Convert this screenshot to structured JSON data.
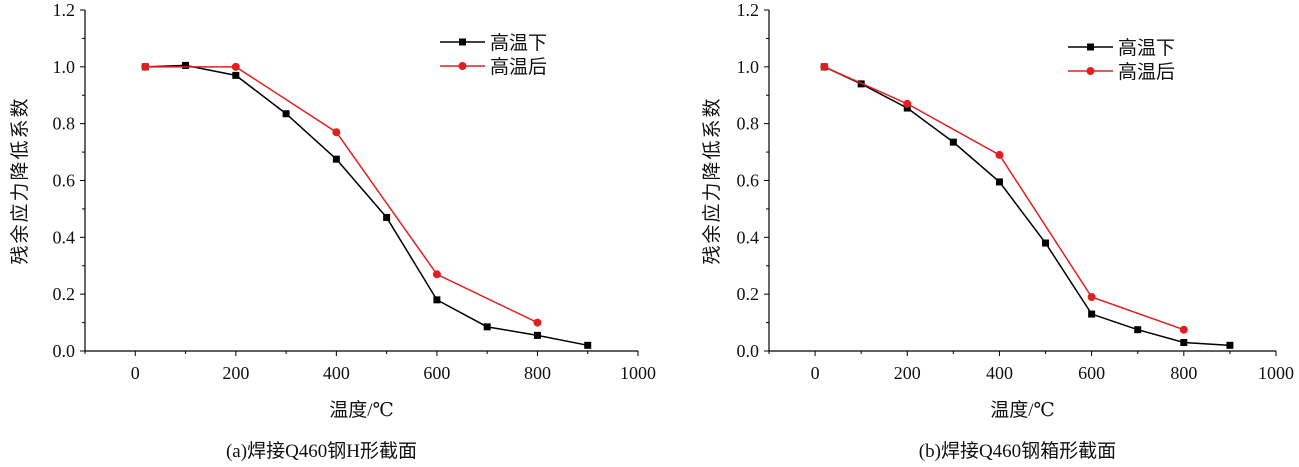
{
  "chart_data": [
    {
      "type": "line",
      "caption": "(a)焊接Q460钢H形截面",
      "xlabel": "温度/℃",
      "ylabel": "残余应力降低系数",
      "xlim": [
        -100,
        1000
      ],
      "ylim": [
        0,
        1.2
      ],
      "xticks": [
        "0",
        "200",
        "400",
        "600",
        "800",
        "1000"
      ],
      "yticks": [
        "0.0",
        "0.2",
        "0.4",
        "0.6",
        "0.8",
        "1.0",
        "1.2"
      ],
      "legend_position": "top-right",
      "series": [
        {
          "name": "高温下",
          "color": "#000000",
          "marker": "square",
          "x": [
            20,
            100,
            200,
            300,
            400,
            500,
            600,
            700,
            800,
            900
          ],
          "y": [
            1.0,
            1.005,
            0.97,
            0.835,
            0.675,
            0.47,
            0.18,
            0.085,
            0.055,
            0.02
          ]
        },
        {
          "name": "高温后",
          "color": "#e02020",
          "marker": "circle",
          "x": [
            20,
            200,
            400,
            600,
            800
          ],
          "y": [
            1.0,
            1.0,
            0.77,
            0.27,
            0.1
          ]
        }
      ]
    },
    {
      "type": "line",
      "caption": "(b)焊接Q460钢箱形截面",
      "xlabel": "温度/℃",
      "ylabel": "残余应力降低系数",
      "xlim": [
        -100,
        1000
      ],
      "ylim": [
        0,
        1.2
      ],
      "xticks": [
        "0",
        "200",
        "400",
        "600",
        "800",
        "1000"
      ],
      "yticks": [
        "0.0",
        "0.2",
        "0.4",
        "0.6",
        "0.8",
        "1.0",
        "1.2"
      ],
      "legend_position": "top-right",
      "series": [
        {
          "name": "高温下",
          "color": "#000000",
          "marker": "square",
          "x": [
            20,
            100,
            200,
            300,
            400,
            500,
            600,
            700,
            800,
            900
          ],
          "y": [
            1.0,
            0.94,
            0.855,
            0.735,
            0.595,
            0.38,
            0.13,
            0.075,
            0.03,
            0.02
          ]
        },
        {
          "name": "高温后",
          "color": "#e02020",
          "marker": "circle",
          "x": [
            20,
            200,
            400,
            600,
            800
          ],
          "y": [
            1.0,
            0.87,
            0.69,
            0.19,
            0.075
          ]
        }
      ]
    }
  ]
}
